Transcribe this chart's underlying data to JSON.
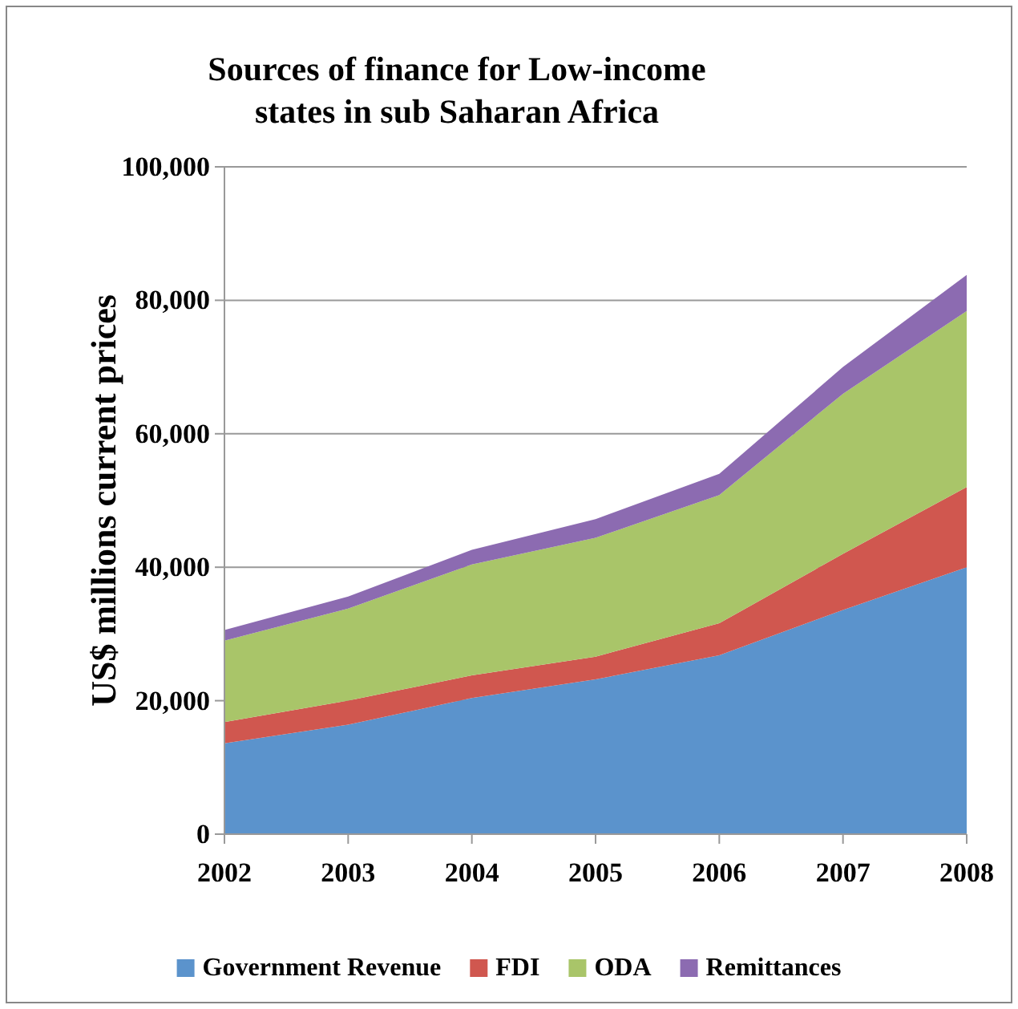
{
  "chart_data": {
    "type": "area",
    "stacked": true,
    "title": "Sources of finance for Low-income states in sub Saharan Africa",
    "ylabel": "US$ millions current prices",
    "categories": [
      "2002",
      "2003",
      "2004",
      "2005",
      "2006",
      "2007",
      "2008"
    ],
    "series": [
      {
        "name": "Government Revenue",
        "color": "#5b93cc",
        "values": [
          13600,
          16400,
          20400,
          23200,
          26800,
          33600,
          40000
        ]
      },
      {
        "name": "FDI",
        "color": "#d0574f",
        "values": [
          3200,
          3600,
          3400,
          3400,
          4800,
          8400,
          12000
        ]
      },
      {
        "name": "ODA",
        "color": "#a9c569",
        "values": [
          12200,
          13800,
          16600,
          17800,
          19200,
          24000,
          26400
        ]
      },
      {
        "name": "Remittances",
        "color": "#8c6bb1",
        "values": [
          1600,
          1800,
          2200,
          2800,
          3200,
          4000,
          5400
        ]
      }
    ],
    "ylim": [
      0,
      100000
    ],
    "yticks": [
      {
        "value": 0,
        "label": "0"
      },
      {
        "value": 20000,
        "label": "20,000"
      },
      {
        "value": 40000,
        "label": "40,000"
      },
      {
        "value": 60000,
        "label": "60,000"
      },
      {
        "value": 80000,
        "label": "80,000"
      },
      {
        "value": 100000,
        "label": "100,000"
      }
    ],
    "grid": "y",
    "legend": "bottom"
  }
}
